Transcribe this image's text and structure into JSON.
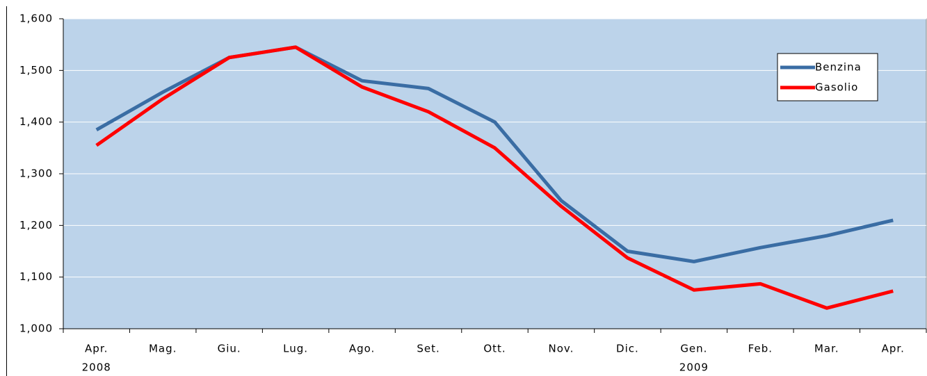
{
  "chart_data": {
    "type": "line",
    "categories": [
      "Apr.",
      "Mag.",
      "Giu.",
      "Lug.",
      "Ago.",
      "Set.",
      "Ott.",
      "Nov.",
      "Dic.",
      "Gen.",
      "Feb.",
      "Mar.",
      "Apr."
    ],
    "category_years": [
      "2008",
      null,
      null,
      null,
      null,
      null,
      null,
      null,
      null,
      "2009",
      null,
      null,
      null
    ],
    "series": [
      {
        "name": "Benzina",
        "color": "#3a6da4",
        "values": [
          1.385,
          1.458,
          1.525,
          1.545,
          1.48,
          1.465,
          1.4,
          1.248,
          1.15,
          1.13,
          1.157,
          1.18,
          1.21
        ]
      },
      {
        "name": "Gasolio",
        "color": "#ff0000",
        "values": [
          1.355,
          1.445,
          1.525,
          1.545,
          1.468,
          1.42,
          1.35,
          1.237,
          1.137,
          1.075,
          1.087,
          1.04,
          1.073
        ]
      }
    ],
    "ylim": [
      1.0,
      1.6
    ],
    "yticks": [
      {
        "value": 1.0,
        "label": "1,000"
      },
      {
        "value": 1.1,
        "label": "1,100"
      },
      {
        "value": 1.2,
        "label": "1,200"
      },
      {
        "value": 1.3,
        "label": "1,300"
      },
      {
        "value": 1.4,
        "label": "1,400"
      },
      {
        "value": 1.5,
        "label": "1,500"
      },
      {
        "value": 1.6,
        "label": "1,600"
      }
    ],
    "grid": true,
    "plot_background": "#bcd3ea",
    "legend_position": "upper right"
  }
}
